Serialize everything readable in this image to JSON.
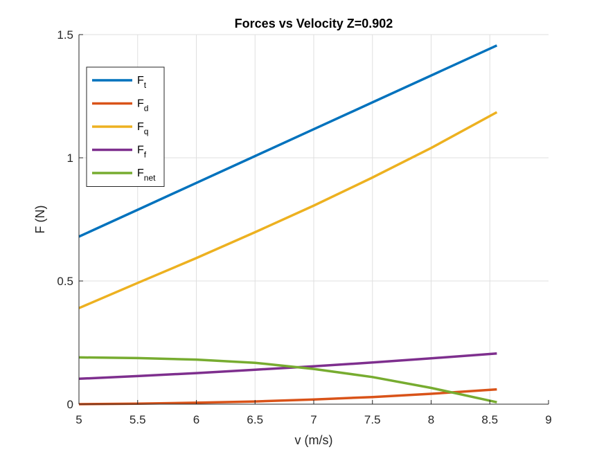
{
  "chart_data": {
    "type": "line",
    "title": "Forces vs Velocity Z=0.902",
    "xlabel": "v (m/s)",
    "ylabel": "F (N)",
    "xlim": [
      5,
      9
    ],
    "ylim": [
      0,
      1.5
    ],
    "xticks": [
      5,
      5.5,
      6,
      6.5,
      7,
      7.5,
      8,
      8.5,
      9
    ],
    "yticks": [
      0,
      0.5,
      1,
      1.5
    ],
    "xtick_labels": [
      "5",
      "5.5",
      "6",
      "6.5",
      "7",
      "7.5",
      "8",
      "8.5",
      "9"
    ],
    "ytick_labels": [
      "0",
      "0.5",
      "1",
      "1.5"
    ],
    "grid": true,
    "legend_position": "top-left",
    "x": [
      5,
      5.5,
      6,
      6.5,
      7,
      7.5,
      8,
      8.56
    ],
    "series": [
      {
        "name": "F",
        "subscript": "t",
        "color": "#0072BD",
        "values": [
          0.68,
          0.789,
          0.898,
          1.007,
          1.116,
          1.225,
          1.334,
          1.456
        ]
      },
      {
        "name": "F",
        "subscript": "d",
        "color": "#D95319",
        "values": [
          0.0,
          0.002,
          0.006,
          0.011,
          0.019,
          0.029,
          0.042,
          0.06
        ]
      },
      {
        "name": "F",
        "subscript": "q",
        "color": "#EDB120",
        "values": [
          0.39,
          0.492,
          0.593,
          0.698,
          0.806,
          0.92,
          1.04,
          1.185
        ]
      },
      {
        "name": "F",
        "subscript": "f",
        "color": "#7E2F8E",
        "values": [
          0.103,
          0.114,
          0.126,
          0.14,
          0.154,
          0.169,
          0.186,
          0.206
        ]
      },
      {
        "name": "F",
        "subscript": "net",
        "color": "#77AC30",
        "values": [
          0.19,
          0.187,
          0.181,
          0.168,
          0.143,
          0.11,
          0.066,
          0.008
        ]
      }
    ]
  }
}
